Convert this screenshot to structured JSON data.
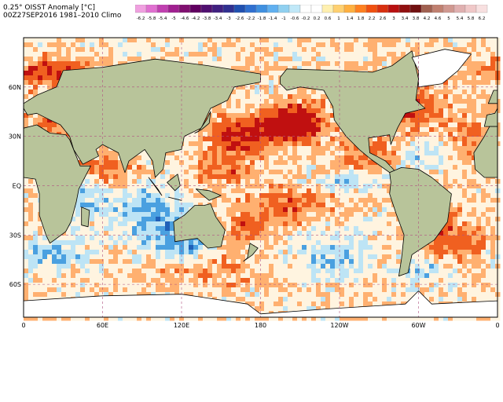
{
  "header": {
    "line1": "0.25° OISST Anomaly [°C]",
    "line2": "00Z27SEP2016 1981–2010 Climo"
  },
  "colorbar": {
    "labels": [
      "-6.2",
      "-5.8",
      "-5.4",
      "-5",
      "-4.6",
      "-4.2",
      "-3.8",
      "-3.4",
      "-3",
      "-2.6",
      "-2.2",
      "-1.8",
      "-1.4",
      "-1",
      "-0.6",
      "-0.2",
      "0.2",
      "0.6",
      "1",
      "1.4",
      "1.8",
      "2.2",
      "2.6",
      "3",
      "3.4",
      "3.8",
      "4.2",
      "4.6",
      "5",
      "5.4",
      "5.8",
      "6.2"
    ],
    "colors": [
      "#f0a0e0",
      "#e070d0",
      "#c040b0",
      "#a02090",
      "#801070",
      "#600060",
      "#501070",
      "#402080",
      "#303090",
      "#2050b0",
      "#3070d0",
      "#4090e0",
      "#60b0f0",
      "#90d0f0",
      "#c0e8f8",
      "#ffffff",
      "#ffffff",
      "#fff0b0",
      "#ffd070",
      "#ffb040",
      "#ff8020",
      "#f05010",
      "#d83010",
      "#b81010",
      "#901010",
      "#701010",
      "#a06050",
      "#c08070",
      "#d09890",
      "#e0b0b0",
      "#f0c8c8",
      "#f8e0e0"
    ]
  },
  "map": {
    "lat_labels": [
      "60N",
      "30N",
      "EQ",
      "30S",
      "60S"
    ],
    "lon_labels": [
      "0",
      "60E",
      "120E",
      "180",
      "120W",
      "60W",
      "0"
    ],
    "lat_values": [
      60,
      30,
      0,
      -30,
      -60
    ],
    "lon_values": [
      0,
      60,
      120,
      180,
      240,
      300,
      360
    ],
    "lat_range": [
      -80,
      90
    ],
    "lon_range": [
      0,
      360
    ],
    "palette": {
      "land": "#b8c49a",
      "land_highland": "#c8b89a",
      "ice": "#ffffff",
      "grid": "#b05080",
      "coast": "#000000",
      "warm_strong": "#c01010",
      "warm": "#f06020",
      "warm_light": "#ffb070",
      "neutral": "#fff4e0",
      "cool_light": "#bde4f5",
      "cool": "#4aa0e0",
      "cool_strong": "#2060b8"
    }
  }
}
